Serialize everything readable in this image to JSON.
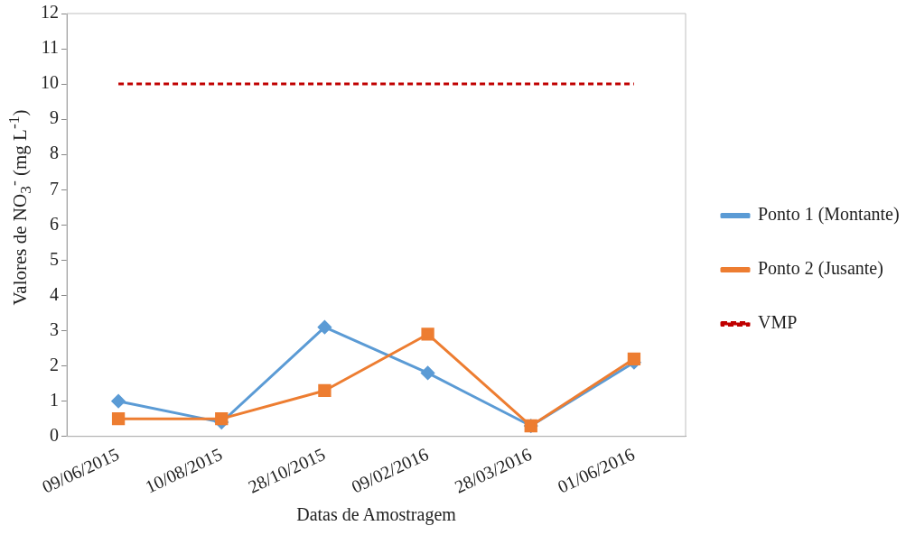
{
  "chart_data": {
    "type": "line",
    "xlabel": "Datas de Amostragem",
    "ylabel": "Valores de NO$_{3}$$^{-}$ (mg L$^{-1}$)",
    "categories": [
      "09/06/2015",
      "10/08/2015",
      "28/10/2015",
      "09/02/2016",
      "28/03/2016",
      "01/06/2016"
    ],
    "series": [
      {
        "name": "Ponto 1 (Montante)",
        "color": "#5b9bd5",
        "marker": "diamond",
        "values": [
          1.0,
          0.4,
          3.1,
          1.8,
          0.3,
          2.1
        ]
      },
      {
        "name": "Ponto 2 (Jusante)",
        "color": "#ed7d31",
        "marker": "square",
        "values": [
          0.5,
          0.5,
          1.3,
          2.9,
          0.3,
          2.2
        ]
      },
      {
        "name": "VMP",
        "color": "#c00000",
        "marker": "none",
        "line_style": "dashed",
        "values": [
          10,
          10,
          10,
          10,
          10,
          10
        ]
      }
    ],
    "ylim": [
      0,
      12
    ],
    "yticks": [
      0,
      1,
      2,
      3,
      4,
      5,
      6,
      7,
      8,
      9,
      10,
      11,
      12
    ],
    "grid": false,
    "legend": "right"
  }
}
